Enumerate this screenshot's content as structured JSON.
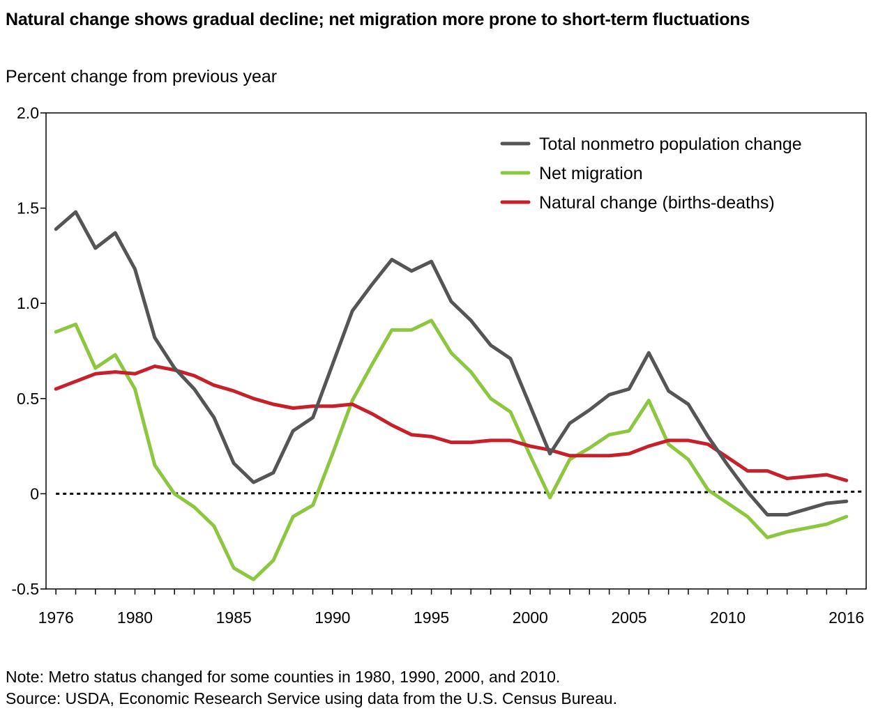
{
  "title": "Natural change shows gradual decline; net migration more prone to short-term fluctuations",
  "y_axis_label": "Percent change from previous year",
  "note": "Note: Metro status changed for some counties in 1980, 1990, 2000, and 2010.",
  "source": "Source: USDA, Economic Research Service using data from the U.S. Census Bureau.",
  "chart_data": {
    "type": "line",
    "title": "Natural change shows gradual decline; net migration more prone to short-term fluctuations",
    "xlabel": "",
    "ylabel": "Percent change from previous year",
    "xlim": [
      1975.5,
      2017.0
    ],
    "ylim": [
      -0.5,
      2.0
    ],
    "x_ticks": [
      1976,
      1980,
      1985,
      1990,
      1995,
      2000,
      2005,
      2010,
      2016
    ],
    "y_ticks": [
      -0.5,
      0,
      0.5,
      1.0,
      1.5,
      2.0
    ],
    "y_tick_labels": [
      "-0.5",
      "0",
      "0.5",
      "1.0",
      "1.5",
      "2.0"
    ],
    "grid": false,
    "legend_position": "top-right",
    "x": [
      1976,
      1977,
      1978,
      1979,
      1980,
      1981,
      1982,
      1983,
      1984,
      1985,
      1986,
      1987,
      1988,
      1989,
      1990,
      1991,
      1992,
      1993,
      1994,
      1995,
      1996,
      1997,
      1998,
      1999,
      2000,
      2001,
      2002,
      2003,
      2004,
      2005,
      2006,
      2007,
      2008,
      2009,
      2010,
      2011,
      2012,
      2013,
      2014,
      2015,
      2016
    ],
    "series": [
      {
        "name": "Total nonmetro population change",
        "color": "#555555",
        "values": [
          1.39,
          1.48,
          1.29,
          1.37,
          1.18,
          0.82,
          0.66,
          0.55,
          0.4,
          0.16,
          0.06,
          0.11,
          0.33,
          0.4,
          0.68,
          0.96,
          1.1,
          1.23,
          1.17,
          1.22,
          1.01,
          0.91,
          0.78,
          0.71,
          0.46,
          0.21,
          0.37,
          0.44,
          0.52,
          0.55,
          0.74,
          0.54,
          0.47,
          0.3,
          0.15,
          0.01,
          -0.11,
          -0.11,
          -0.08,
          -0.05,
          -0.04
        ]
      },
      {
        "name": "Net migration",
        "color": "#8dc63f",
        "values": [
          0.85,
          0.89,
          0.66,
          0.73,
          0.55,
          0.15,
          0.0,
          -0.07,
          -0.17,
          -0.39,
          -0.45,
          -0.35,
          -0.12,
          -0.06,
          0.21,
          0.49,
          0.68,
          0.86,
          0.86,
          0.91,
          0.74,
          0.64,
          0.5,
          0.43,
          0.2,
          -0.02,
          0.18,
          0.24,
          0.31,
          0.33,
          0.49,
          0.26,
          0.18,
          0.02,
          -0.05,
          -0.12,
          -0.23,
          -0.2,
          -0.18,
          -0.16,
          -0.12
        ]
      },
      {
        "name": "Natural change (births-deaths)",
        "color": "#c8202b",
        "values": [
          0.55,
          0.59,
          0.63,
          0.64,
          0.63,
          0.67,
          0.65,
          0.62,
          0.57,
          0.54,
          0.5,
          0.47,
          0.45,
          0.46,
          0.46,
          0.47,
          0.42,
          0.36,
          0.31,
          0.3,
          0.27,
          0.27,
          0.28,
          0.28,
          0.25,
          0.23,
          0.2,
          0.2,
          0.2,
          0.21,
          0.25,
          0.28,
          0.28,
          0.26,
          0.19,
          0.12,
          0.12,
          0.08,
          0.09,
          0.1,
          0.07
        ]
      },
      {
        "name": "",
        "style": "dotted",
        "color": "#000000",
        "values": [
          0,
          0,
          0,
          0,
          0,
          0,
          0,
          0,
          0,
          0,
          0,
          0,
          0,
          0,
          0,
          0,
          0,
          0,
          0,
          0,
          0,
          0,
          0,
          0,
          0,
          0,
          0,
          0,
          0,
          0,
          0,
          0,
          0,
          0,
          0,
          0,
          0,
          0,
          0,
          0,
          0.01
        ]
      }
    ]
  }
}
